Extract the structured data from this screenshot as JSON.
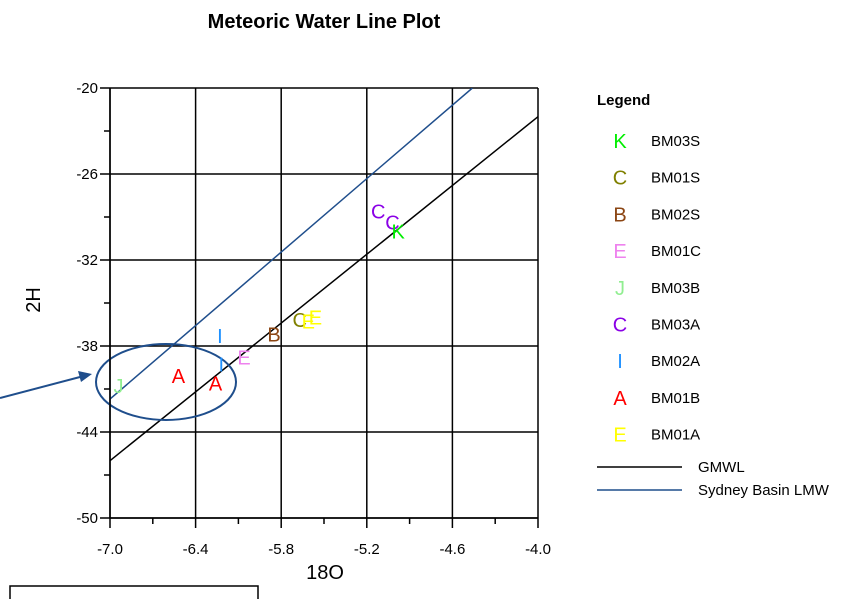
{
  "chart_data": {
    "type": "scatter",
    "title": "Meteoric Water Line Plot",
    "xlabel": "18O",
    "ylabel": "2H",
    "xlim": [
      -7.0,
      -4.0
    ],
    "ylim": [
      -50,
      -20
    ],
    "x_ticks": [
      "-7.0",
      "-6.4",
      "-5.8",
      "-5.2",
      "-4.6",
      "-4.0"
    ],
    "y_ticks": [
      "-20",
      "-26",
      "-32",
      "-38",
      "-44",
      "-50"
    ],
    "grid": true,
    "legend": {
      "title": "Legend",
      "placement": "right",
      "markers": [
        {
          "symbol": "K",
          "name": "BM03S",
          "color": "#00ee00"
        },
        {
          "symbol": "C",
          "name": "BM01S",
          "color": "#808000"
        },
        {
          "symbol": "B",
          "name": "BM02S",
          "color": "#8b4513"
        },
        {
          "symbol": "E",
          "name": "BM01C",
          "color": "#ee82ee"
        },
        {
          "symbol": "J",
          "name": "BM03B",
          "color": "#90ee90"
        },
        {
          "symbol": "C",
          "name": "BM03A",
          "color": "#8a00e6"
        },
        {
          "symbol": "I",
          "name": "BM02A",
          "color": "#1e90ff"
        },
        {
          "symbol": "A",
          "name": "BM01B",
          "color": "#ff0000"
        },
        {
          "symbol": "E",
          "name": "BM01A",
          "color": "#ffff00"
        }
      ],
      "lines": [
        {
          "name": "GMWL",
          "color": "#000000"
        },
        {
          "name": "Sydney Basin LMW",
          "color": "#1f4e8c"
        }
      ]
    },
    "points": [
      {
        "symbol": "J",
        "series": "BM03B",
        "x": -6.94,
        "y": -40.8
      },
      {
        "symbol": "A",
        "series": "BM01B",
        "x": -6.52,
        "y": -40.1
      },
      {
        "symbol": "A",
        "series": "BM01B",
        "x": -6.26,
        "y": -40.6
      },
      {
        "symbol": "I",
        "series": "BM02A",
        "x": -6.23,
        "y": -37.3
      },
      {
        "symbol": "I",
        "series": "BM02A",
        "x": -6.22,
        "y": -39.3
      },
      {
        "symbol": "E",
        "series": "BM01C",
        "x": -6.06,
        "y": -38.8
      },
      {
        "symbol": "B",
        "series": "BM02S",
        "x": -5.85,
        "y": -37.2
      },
      {
        "symbol": "C",
        "series": "BM01S",
        "x": -5.67,
        "y": -36.2
      },
      {
        "symbol": "E",
        "series": "BM01A",
        "x": -5.61,
        "y": -36.3
      },
      {
        "symbol": "E",
        "series": "BM01A",
        "x": -5.56,
        "y": -36.0
      },
      {
        "symbol": "C",
        "series": "BM03A",
        "x": -5.12,
        "y": -28.6
      },
      {
        "symbol": "C",
        "series": "BM03A",
        "x": -5.02,
        "y": -29.4
      },
      {
        "symbol": "K",
        "series": "BM03S",
        "x": -4.98,
        "y": -30.0
      }
    ],
    "lines": [
      {
        "name": "GMWL",
        "color": "#000000",
        "points": [
          [
            -7.0,
            -46.0
          ],
          [
            -4.0,
            -22.0
          ]
        ]
      },
      {
        "name": "Sydney Basin LMW",
        "color": "#1f4e8c",
        "points": [
          [
            -7.0,
            -41.7
          ],
          [
            -4.46,
            -20.0
          ]
        ]
      }
    ]
  }
}
